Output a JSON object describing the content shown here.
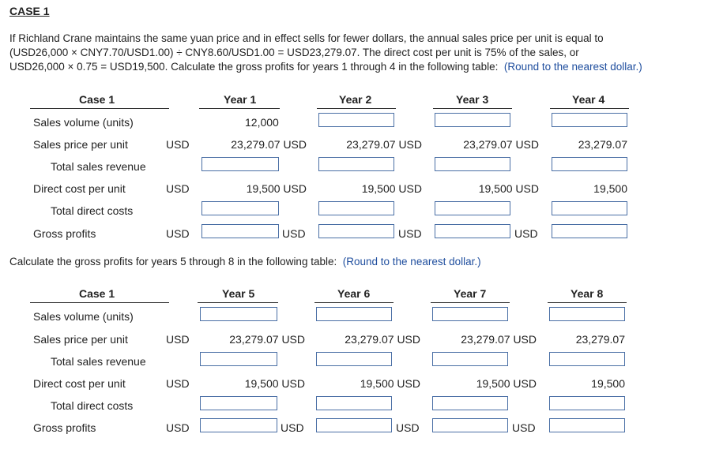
{
  "title": "CASE 1",
  "intro": {
    "l1": "If Richland Crane maintains the same yuan price and in effect sells for fewer dollars, the annual sales price per unit is equal to",
    "l2": "(USD26,000 × CNY7.70/USD1.00) ÷ CNY8.60/USD1.00 = USD23,279.07. The direct cost per unit is 75% of the sales, or",
    "l3": "USD26,000 × 0.75 = USD19,500. Calculate the gross profits for years 1 through 4 in the following table:",
    "round": "(Round to the nearest dollar.)"
  },
  "between": {
    "text": "Calculate the gross profits for years 5 through 8 in the following table:",
    "round": "(Round to the nearest dollar.)"
  },
  "labels": {
    "case": "Case 1",
    "sales_volume": "Sales volume (units)",
    "sales_price": "Sales price per unit",
    "total_revenue": "Total sales revenue",
    "direct_cost": "Direct cost per unit",
    "total_costs": "Total direct costs",
    "gross_profits": "Gross profits",
    "usd": "USD"
  },
  "table1": {
    "years": [
      "Year 1",
      "Year 2",
      "Year 3",
      "Year 4"
    ],
    "volume_y1": "12,000",
    "price": [
      "23,279.07 USD",
      "23,279.07 USD",
      "23,279.07 USD",
      "23,279.07"
    ],
    "cost": [
      "19,500 USD",
      "19,500 USD",
      "19,500 USD",
      "19,500"
    ]
  },
  "table2": {
    "years": [
      "Year 5",
      "Year 6",
      "Year 7",
      "Year 8"
    ],
    "price": [
      "23,279.07 USD",
      "23,279.07 USD",
      "23,279.07 USD",
      "23,279.07"
    ],
    "cost": [
      "19,500 USD",
      "19,500 USD",
      "19,500 USD",
      "19,500"
    ]
  }
}
